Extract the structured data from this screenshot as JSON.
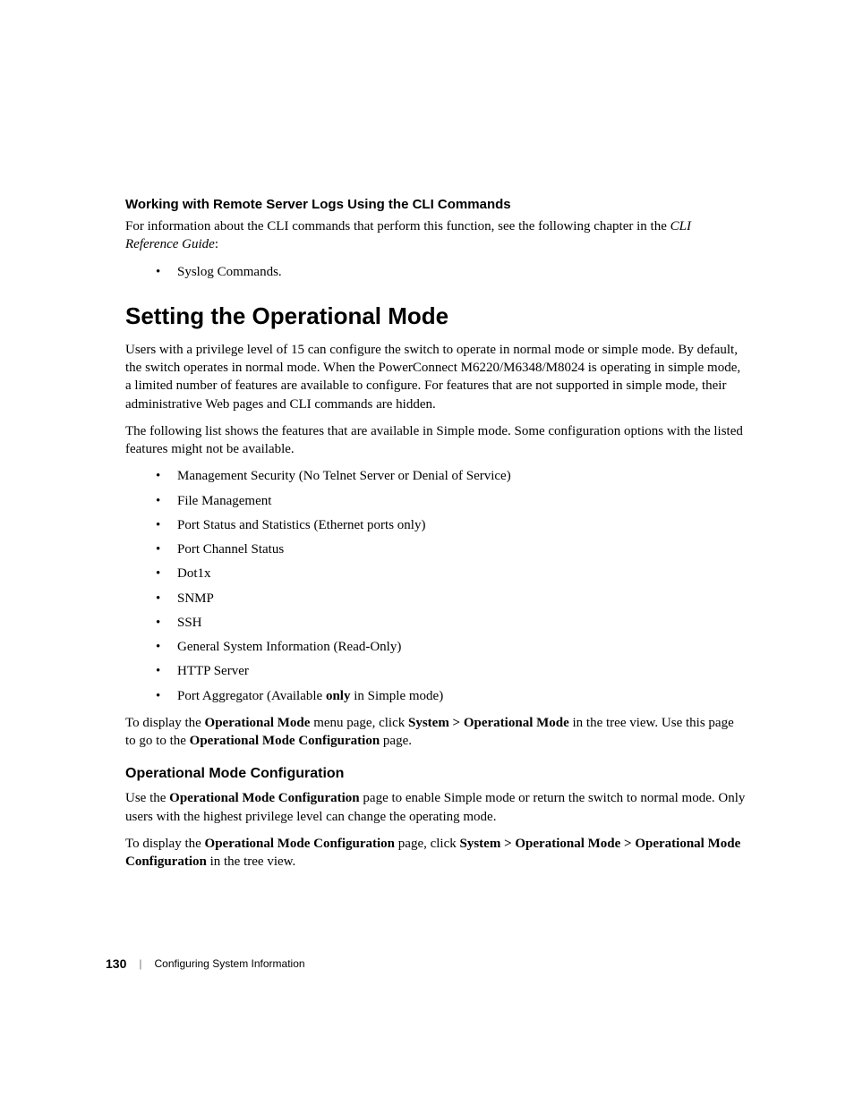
{
  "sec1": {
    "heading": "Working with Remote Server Logs Using the CLI Commands",
    "para_lead": "For information about the CLI commands that perform this function, see the following chapter in the ",
    "para_ref": "CLI Reference Guide",
    "para_tail": ":",
    "bullets": [
      "Syslog Commands."
    ]
  },
  "main": {
    "heading": "Setting the Operational Mode",
    "p1": "Users with a privilege level of 15 can configure the switch to operate in normal mode or simple mode. By default, the switch operates in normal mode. When the PowerConnect M6220/M6348/M8024 is operating in simple mode, a limited number of features are available to configure. For features that are not supported in simple mode, their administrative Web pages and CLI commands are hidden.",
    "p2": "The following list shows the features that are available in Simple mode. Some configuration options with the listed features might not be available.",
    "features": [
      {
        "text": "Management Security (No Telnet Server or Denial of Service)"
      },
      {
        "text": "File Management"
      },
      {
        "text": "Port Status and Statistics (Ethernet ports only)"
      },
      {
        "text": "Port Channel Status"
      },
      {
        "text": "Dot1x"
      },
      {
        "text": "SNMP"
      },
      {
        "text": "SSH"
      },
      {
        "text": "General System Information (Read-Only)"
      },
      {
        "text": "HTTP Server"
      },
      {
        "pre": "Port Aggregator (Available ",
        "bold": "only",
        "post": " in Simple mode)"
      }
    ],
    "p3": {
      "a": "To display the ",
      "b": "Operational Mode",
      "c": " menu page, click ",
      "d": "System > Operational Mode",
      "e": " in the tree view. Use this page to go to the ",
      "f": "Operational Mode Configuration",
      "g": " page."
    }
  },
  "sub": {
    "heading": "Operational Mode Configuration",
    "p1": {
      "a": "Use the ",
      "b": "Operational Mode Configuration",
      "c": " page to enable Simple mode or return the switch to normal mode. Only users with the highest privilege level can change the operating mode."
    },
    "p2": {
      "a": "To display the ",
      "b": "Operational Mode Configuration",
      "c": " page, click ",
      "d": "System > Operational Mode > Operational Mode Configuration",
      "e": " in the tree view."
    }
  },
  "footer": {
    "page": "130",
    "divider": "|",
    "section": "Configuring System Information"
  }
}
